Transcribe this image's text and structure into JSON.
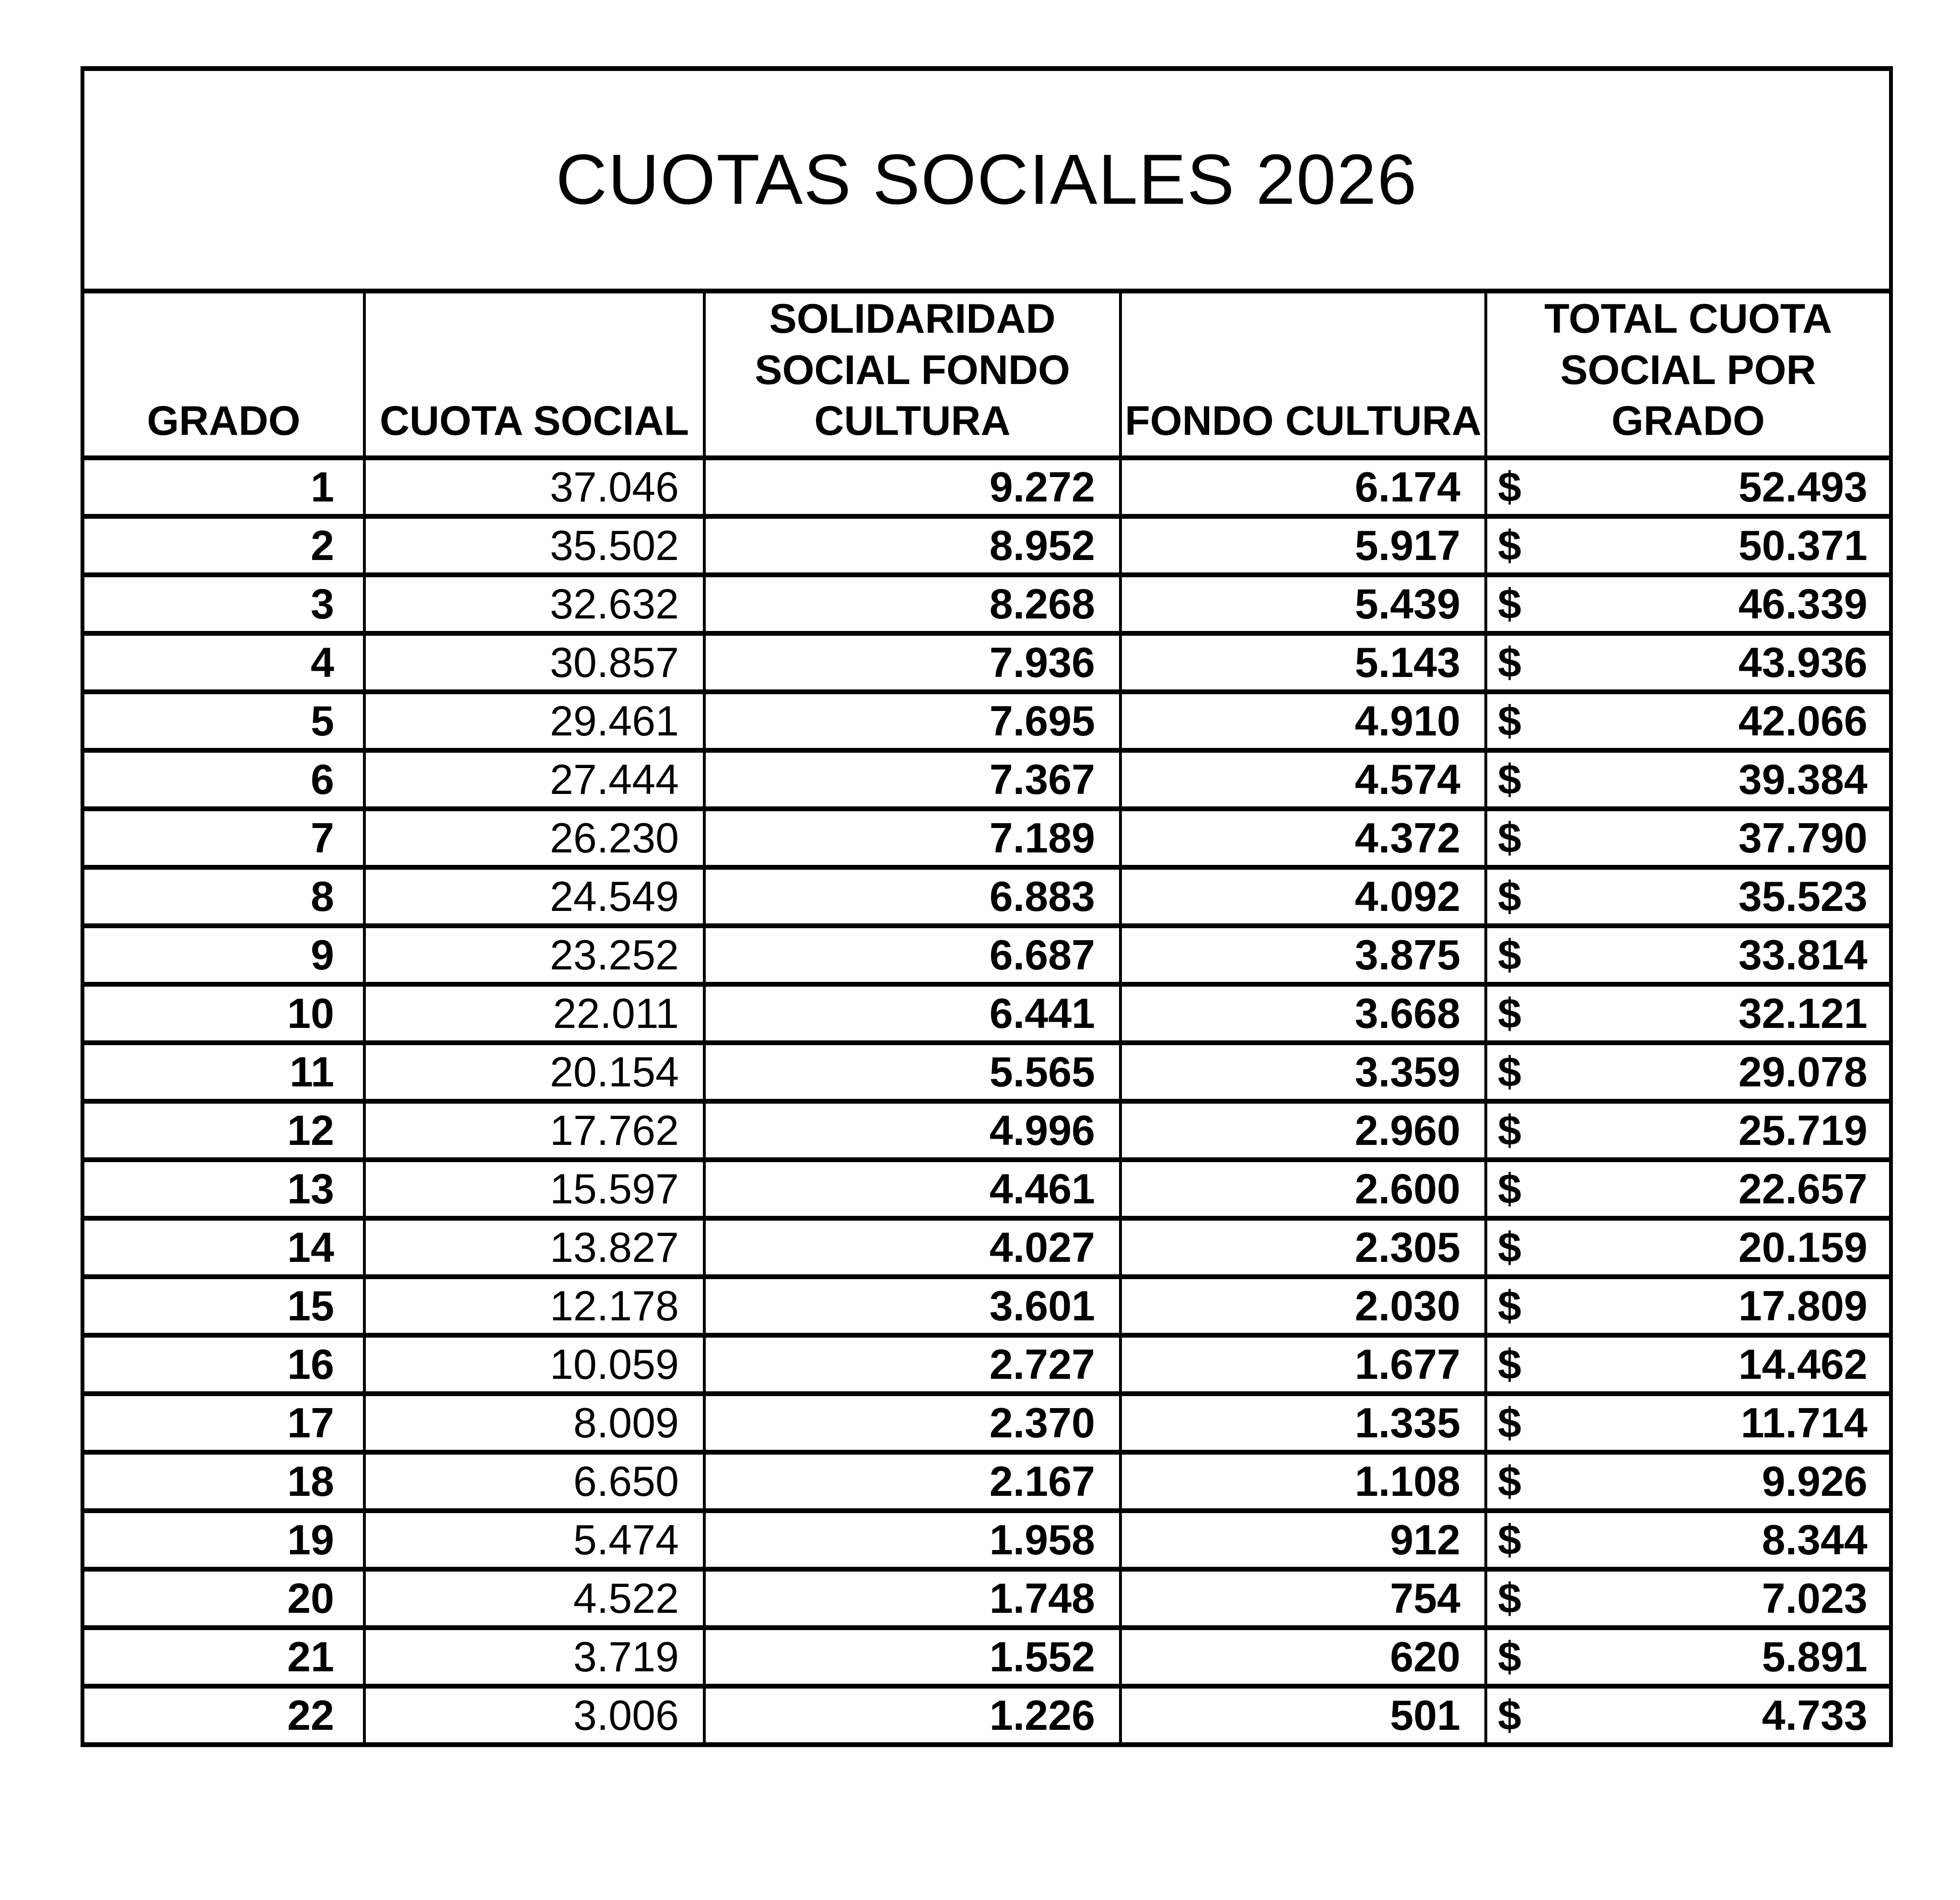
{
  "title": "CUOTAS SOCIALES 2026",
  "colors": {
    "background": "#ffffff",
    "text": "#000000",
    "border": "#000000"
  },
  "table": {
    "currency_symbol": "$",
    "headers": {
      "grado": "GRADO",
      "cuota_social": "CUOTA SOCIAL",
      "solidaridad": [
        "SOLIDARIDAD",
        "SOCIAL FONDO",
        "CULTURA"
      ],
      "fondo_cultura": "FONDO CULTURA",
      "total": [
        "TOTAL CUOTA",
        "SOCIAL POR  GRADO"
      ]
    },
    "rows": [
      {
        "grado": "1",
        "cuota_social": "37.046",
        "solidaridad": "9.272",
        "fondo_cultura": "6.174",
        "total": "52.493"
      },
      {
        "grado": "2",
        "cuota_social": "35.502",
        "solidaridad": "8.952",
        "fondo_cultura": "5.917",
        "total": "50.371"
      },
      {
        "grado": "3",
        "cuota_social": "32.632",
        "solidaridad": "8.268",
        "fondo_cultura": "5.439",
        "total": "46.339"
      },
      {
        "grado": "4",
        "cuota_social": "30.857",
        "solidaridad": "7.936",
        "fondo_cultura": "5.143",
        "total": "43.936"
      },
      {
        "grado": "5",
        "cuota_social": "29.461",
        "solidaridad": "7.695",
        "fondo_cultura": "4.910",
        "total": "42.066"
      },
      {
        "grado": "6",
        "cuota_social": "27.444",
        "solidaridad": "7.367",
        "fondo_cultura": "4.574",
        "total": "39.384"
      },
      {
        "grado": "7",
        "cuota_social": "26.230",
        "solidaridad": "7.189",
        "fondo_cultura": "4.372",
        "total": "37.790"
      },
      {
        "grado": "8",
        "cuota_social": "24.549",
        "solidaridad": "6.883",
        "fondo_cultura": "4.092",
        "total": "35.523"
      },
      {
        "grado": "9",
        "cuota_social": "23.252",
        "solidaridad": "6.687",
        "fondo_cultura": "3.875",
        "total": "33.814"
      },
      {
        "grado": "10",
        "cuota_social": "22.011",
        "solidaridad": "6.441",
        "fondo_cultura": "3.668",
        "total": "32.121"
      },
      {
        "grado": "11",
        "cuota_social": "20.154",
        "solidaridad": "5.565",
        "fondo_cultura": "3.359",
        "total": "29.078"
      },
      {
        "grado": "12",
        "cuota_social": "17.762",
        "solidaridad": "4.996",
        "fondo_cultura": "2.960",
        "total": "25.719"
      },
      {
        "grado": "13",
        "cuota_social": "15.597",
        "solidaridad": "4.461",
        "fondo_cultura": "2.600",
        "total": "22.657"
      },
      {
        "grado": "14",
        "cuota_social": "13.827",
        "solidaridad": "4.027",
        "fondo_cultura": "2.305",
        "total": "20.159"
      },
      {
        "grado": "15",
        "cuota_social": "12.178",
        "solidaridad": "3.601",
        "fondo_cultura": "2.030",
        "total": "17.809"
      },
      {
        "grado": "16",
        "cuota_social": "10.059",
        "solidaridad": "2.727",
        "fondo_cultura": "1.677",
        "total": "14.462"
      },
      {
        "grado": "17",
        "cuota_social": "8.009",
        "solidaridad": "2.370",
        "fondo_cultura": "1.335",
        "total": "11.714"
      },
      {
        "grado": "18",
        "cuota_social": "6.650",
        "solidaridad": "2.167",
        "fondo_cultura": "1.108",
        "total": "9.926"
      },
      {
        "grado": "19",
        "cuota_social": "5.474",
        "solidaridad": "1.958",
        "fondo_cultura": "912",
        "total": "8.344"
      },
      {
        "grado": "20",
        "cuota_social": "4.522",
        "solidaridad": "1.748",
        "fondo_cultura": "754",
        "total": "7.023"
      },
      {
        "grado": "21",
        "cuota_social": "3.719",
        "solidaridad": "1.552",
        "fondo_cultura": "620",
        "total": "5.891"
      },
      {
        "grado": "22",
        "cuota_social": "3.006",
        "solidaridad": "1.226",
        "fondo_cultura": "501",
        "total": "4.733"
      }
    ]
  }
}
